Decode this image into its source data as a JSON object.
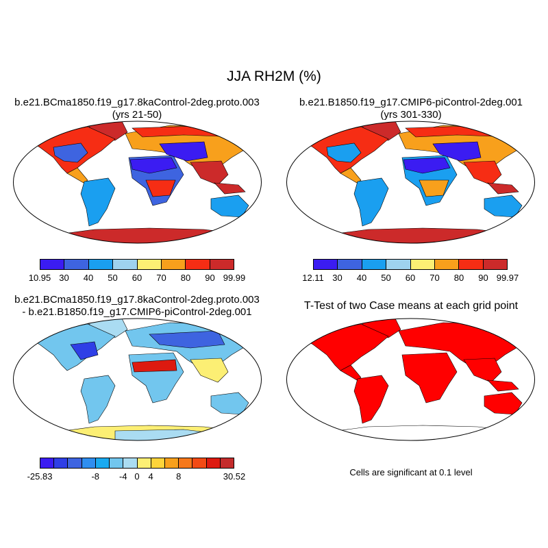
{
  "figure": {
    "title": "JJA RH2M (%)"
  },
  "panels": {
    "top_left": {
      "title_line1": "b.e21.BCma1850.f19_g17.8kaControl-2deg.proto.003",
      "title_line2": "(yrs 21-50)"
    },
    "top_right": {
      "title_line1": "b.e21.B1850.f19_g17.CMIP6-piControl-2deg.001",
      "title_line2": "(yrs 301-330)"
    },
    "bottom_left": {
      "title_line1": "b.e21.BCma1850.f19_g17.8kaControl-2deg.proto.003",
      "title_line2": "- b.e21.B1850.f19_g17.CMIP6-piControl-2deg.001"
    },
    "bottom_right": {
      "title": "T-Test of two Case means at each grid point",
      "note": "Cells are significant at 0.1 level"
    }
  },
  "colorbars": {
    "top_left": {
      "colors": [
        "#3b1cf2",
        "#3e64e0",
        "#1a9ff0",
        "#9ed2ee",
        "#fcef74",
        "#f8a01c",
        "#f62d14",
        "#cc2a2a"
      ],
      "labels": [
        "10.95",
        "30",
        "40",
        "50",
        "60",
        "70",
        "80",
        "90",
        "99.99"
      ]
    },
    "top_right": {
      "colors": [
        "#3b1cf2",
        "#3e64e0",
        "#1a9ff0",
        "#9ed2ee",
        "#fcef74",
        "#f8a01c",
        "#f62d14",
        "#cc2a2a"
      ],
      "labels": [
        "12.11",
        "30",
        "40",
        "50",
        "60",
        "70",
        "80",
        "90",
        "99.97"
      ]
    },
    "bottom_left": {
      "colors": [
        "#3b1cf2",
        "#2f3fe6",
        "#3e64e0",
        "#2f8ef0",
        "#1aaaf0",
        "#72c6ee",
        "#aadcf2",
        "#fcef74",
        "#fdd43a",
        "#f8a01c",
        "#f6781a",
        "#f24a14",
        "#dd1a10",
        "#c42c2c"
      ],
      "labels": [
        "-25.83",
        "-8",
        "-4",
        "0",
        "4",
        "8",
        "30.52"
      ]
    }
  },
  "map_colors": {
    "ocean": "#ffffff",
    "outline": "#000000",
    "significant": "#ff0000"
  }
}
